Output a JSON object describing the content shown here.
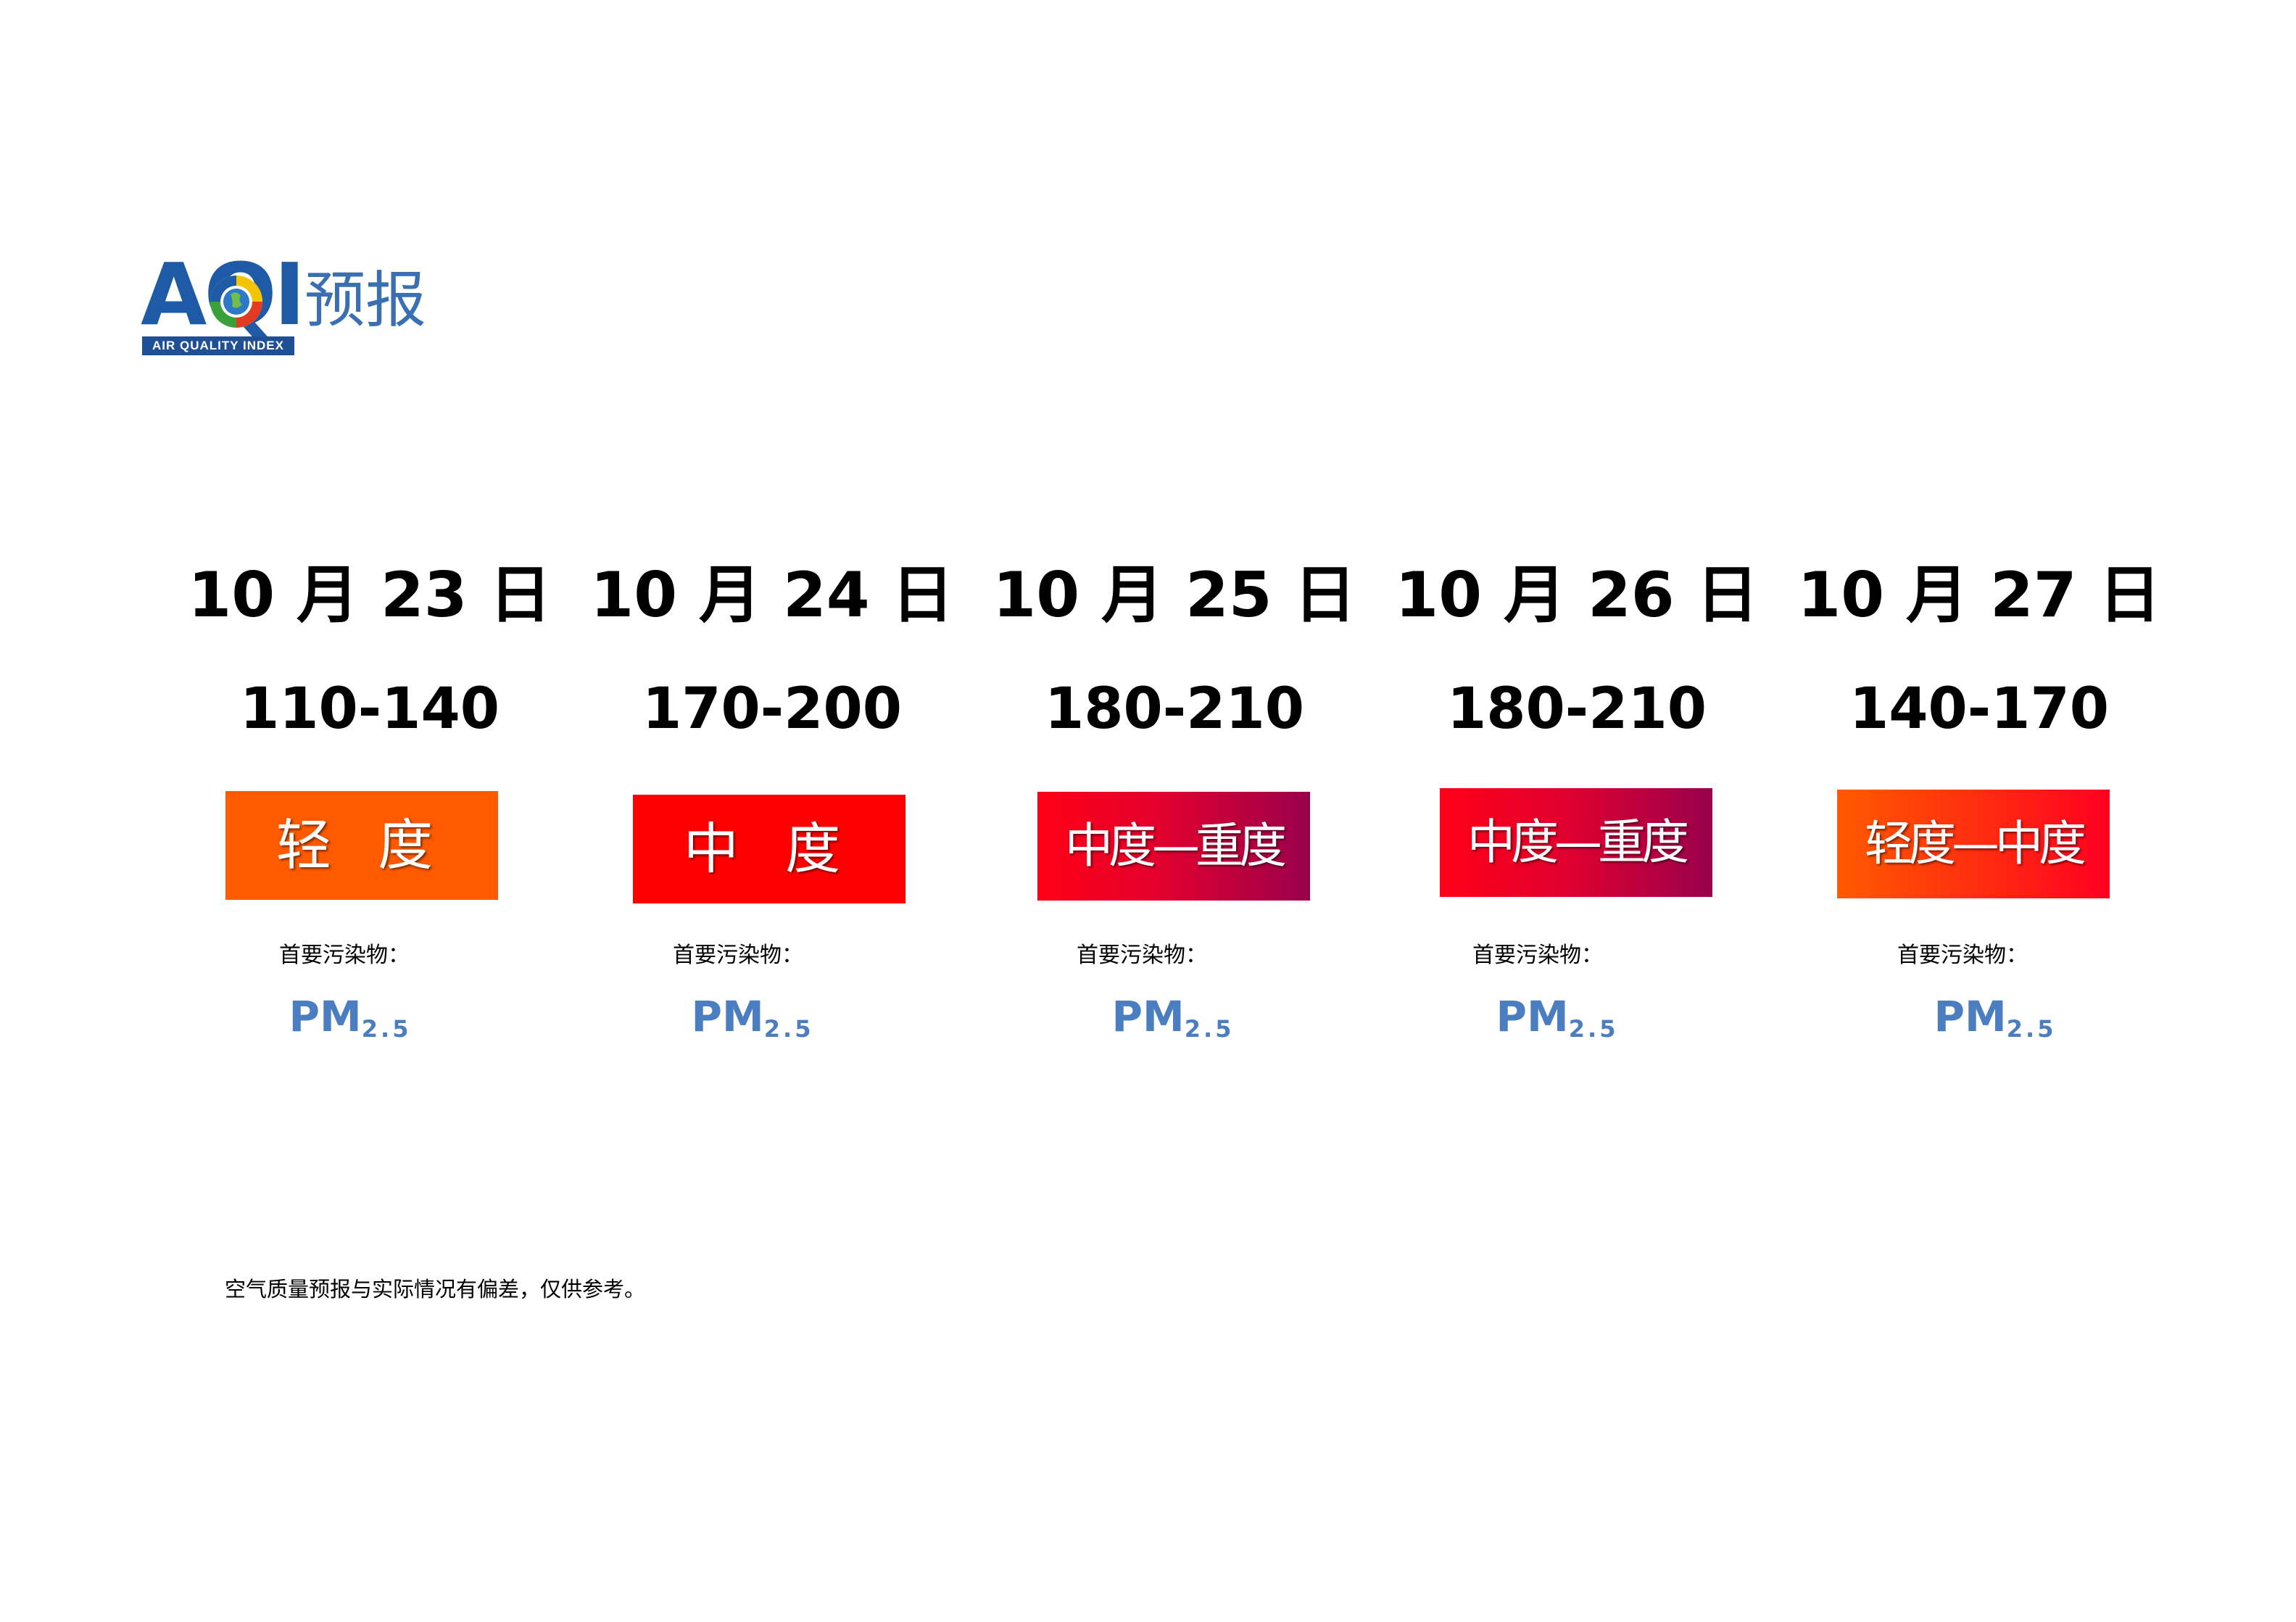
{
  "header": {
    "logo_letters": "AQI",
    "logo_band": "AIR QUALITY INDEX",
    "title": "预报"
  },
  "forecast": [
    {
      "date": "10 月 23 日",
      "range": "110-140",
      "level": "轻 度",
      "pollutant_label": "首要污染物：",
      "pollutant": "PM",
      "pollutant_sub": "2.5",
      "color": "#ff5a00"
    },
    {
      "date": "10 月 24 日",
      "range": "170-200",
      "level": "中 度",
      "pollutant_label": "首要污染物：",
      "pollutant": "PM",
      "pollutant_sub": "2.5",
      "color": "#ff0000"
    },
    {
      "date": "10 月 25 日",
      "range": "180-210",
      "level": "中度—重度",
      "pollutant_label": "首要污染物：",
      "pollutant": "PM",
      "pollutant_sub": "2.5",
      "color": "#99004c"
    },
    {
      "date": "10 月 26 日",
      "range": "180-210",
      "level": "中度—重度",
      "pollutant_label": "首要污染物：",
      "pollutant": "PM",
      "pollutant_sub": "2.5",
      "color": "#99004c"
    },
    {
      "date": "10 月 27 日",
      "range": "140-170",
      "level": "轻度—中度",
      "pollutant_label": "首要污染物：",
      "pollutant": "PM",
      "pollutant_sub": "2.5",
      "color": "#ff0000"
    }
  ],
  "footer": {
    "note": "空气质量预报与实际情况有偏差，仅供参考。"
  },
  "colors": {
    "light": "#ff5a00",
    "moderate": "#ff0000",
    "heavy": "#99004c",
    "pm": "#4a7ec0",
    "logo": "#1f5aa6"
  }
}
